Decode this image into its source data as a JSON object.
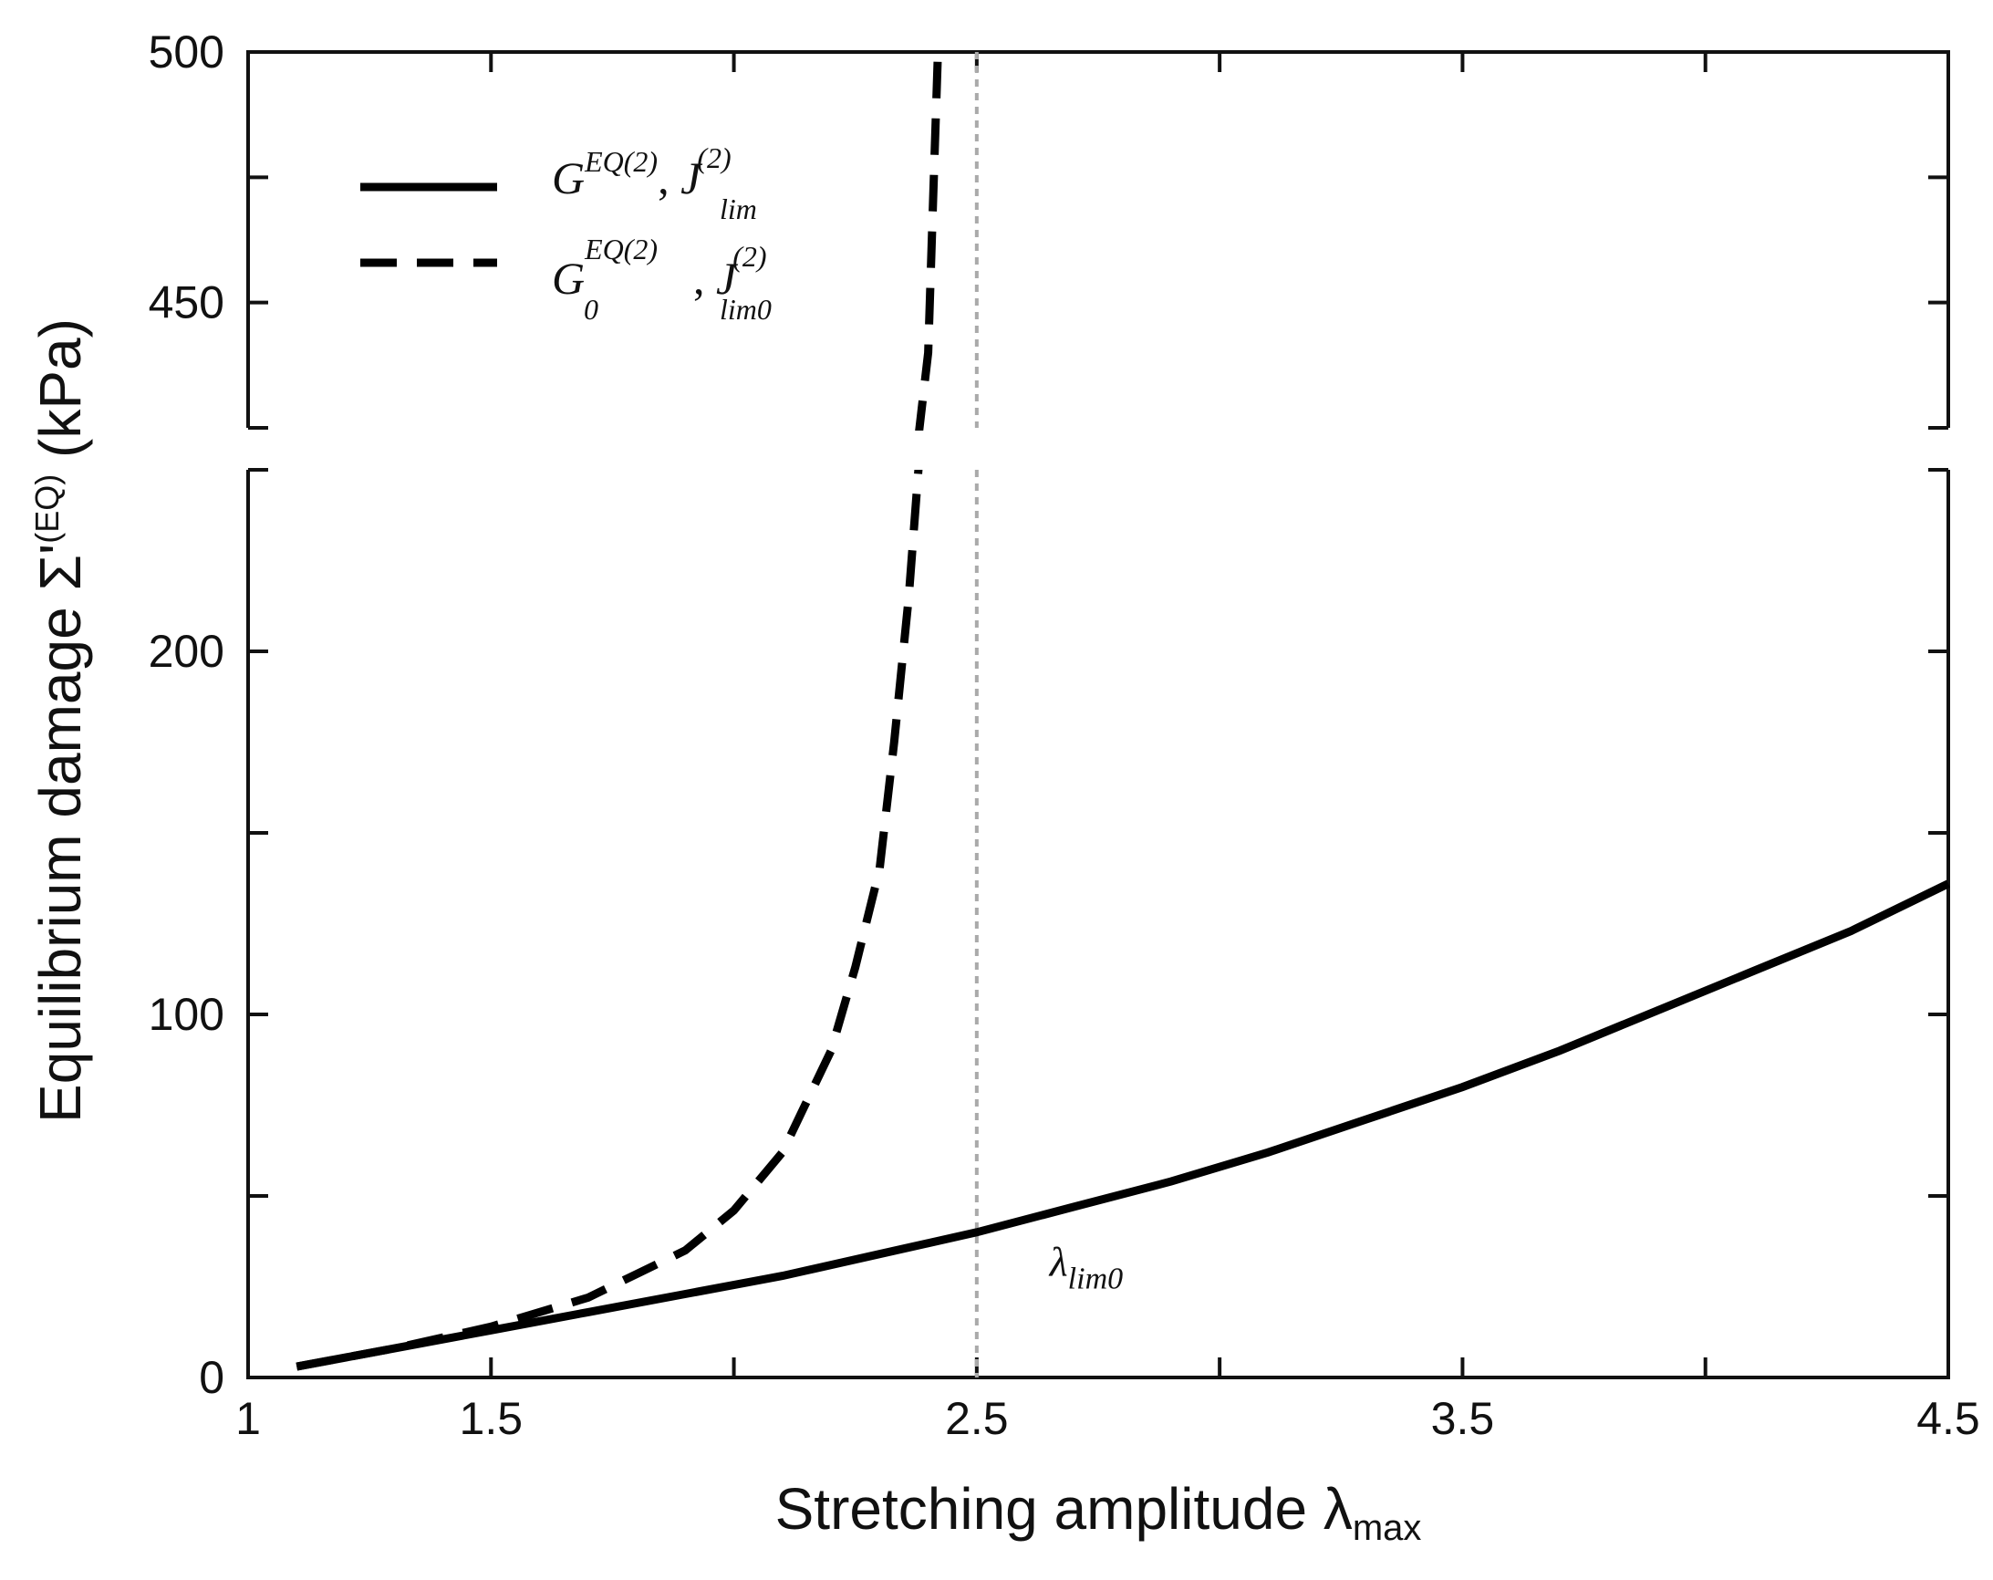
{
  "chart_data": {
    "type": "line",
    "broken_y_axis": true,
    "xlabel": {
      "text": "Stretching amplitude ",
      "symbol": "λ",
      "subscript": "max"
    },
    "ylabel": {
      "text": "Equilibrium damage ",
      "symbol": "Σ'",
      "superscript": "(EQ)",
      "unit": " (kPa)"
    },
    "xlim": [
      1,
      4.5
    ],
    "x_ticks": [
      1,
      1.5,
      2,
      2.5,
      3,
      3.5,
      4,
      4.5
    ],
    "x_tick_labels": [
      "1",
      "1.5",
      "2.5",
      "3.5",
      "4.5"
    ],
    "x_tick_label_values": [
      1,
      1.5,
      2.5,
      3.5,
      4.5
    ],
    "lower_panel": {
      "ylim": [
        0,
        250
      ],
      "y_ticks": [
        0,
        50,
        100,
        150,
        200,
        250
      ],
      "y_tick_labels": [
        "0",
        "100",
        "200"
      ],
      "y_tick_label_values": [
        0,
        100,
        200
      ]
    },
    "upper_panel": {
      "ylim": [
        425,
        500
      ],
      "y_ticks": [
        425,
        450,
        475,
        500
      ],
      "y_tick_labels": [
        "450",
        "500"
      ],
      "y_tick_label_values": [
        450,
        500
      ]
    },
    "series": [
      {
        "name": "solid",
        "legend": {
          "g": "G",
          "g_sup": "EQ(2)",
          "g_sub": "",
          "sep": ", ",
          "j": "J",
          "j_sup": "(2)",
          "j_sub": "lim"
        },
        "style": "solid",
        "color": "#000000",
        "x": [
          1.1,
          1.3,
          1.5,
          1.7,
          1.9,
          2.1,
          2.3,
          2.5,
          2.7,
          2.9,
          3.1,
          3.3,
          3.5,
          3.7,
          3.9,
          4.1,
          4.3,
          4.5
        ],
        "y": [
          3,
          8,
          13,
          18,
          23,
          28,
          34,
          40,
          47,
          54,
          62,
          71,
          80,
          90,
          101,
          112,
          123,
          136
        ]
      },
      {
        "name": "dashed",
        "legend": {
          "g": "G",
          "g_sup": "EQ(2)",
          "g_sub": "0",
          "sep": ", ",
          "j": "J",
          "j_sup": "(2)",
          "j_sub": "lim0"
        },
        "style": "dashed",
        "color": "#000000",
        "x": [
          1.1,
          1.3,
          1.5,
          1.7,
          1.9,
          2.0,
          2.1,
          2.2,
          2.25,
          2.3,
          2.33,
          2.36,
          2.38,
          2.4,
          2.41,
          2.42
        ],
        "y": [
          3,
          8,
          14,
          22,
          35,
          46,
          62,
          90,
          113,
          140,
          175,
          215,
          250,
          440,
          470,
          500
        ]
      }
    ],
    "vertical_line": {
      "x": 2.5,
      "style": "dotted",
      "color": "#aaaaaa"
    },
    "annotation": {
      "symbol": "λ",
      "subscript": "lim0",
      "x": 2.65,
      "y": 28
    }
  }
}
